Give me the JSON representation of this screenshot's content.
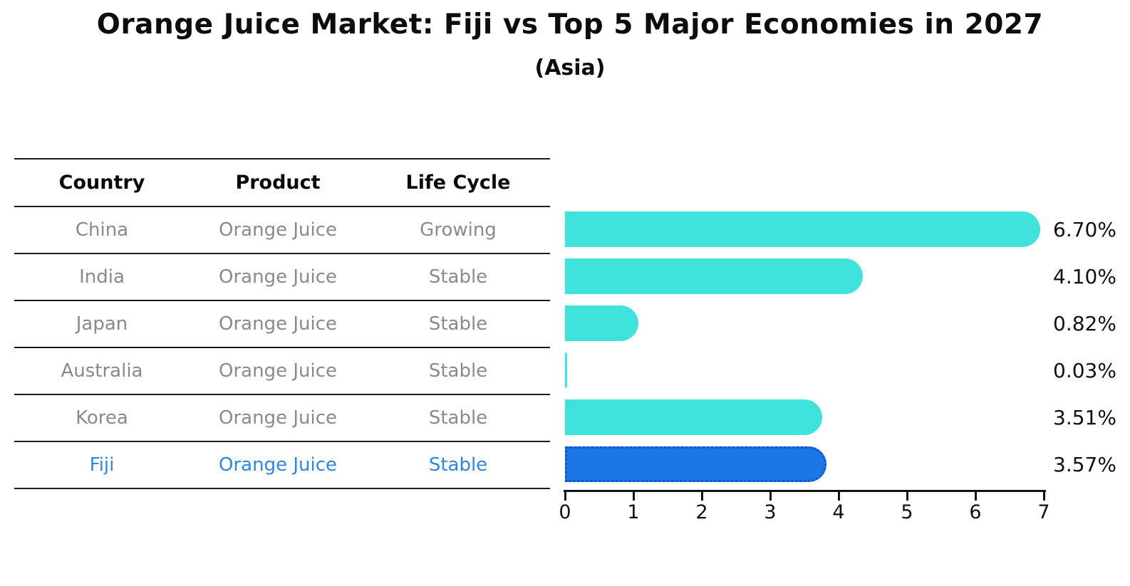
{
  "title": "Orange Juice Market: Fiji vs Top 5 Major Economies in 2027",
  "subtitle": "(Asia)",
  "table": {
    "headers": [
      "Country",
      "Product",
      "Life Cycle"
    ],
    "rows": [
      {
        "country": "China",
        "product": "Orange Juice",
        "life_cycle": "Growing"
      },
      {
        "country": "India",
        "product": "Orange Juice",
        "life_cycle": "Stable"
      },
      {
        "country": "Japan",
        "product": "Orange Juice",
        "life_cycle": "Stable"
      },
      {
        "country": "Australia",
        "product": "Orange Juice",
        "life_cycle": "Stable"
      },
      {
        "country": "Korea",
        "product": "Orange Juice",
        "life_cycle": "Stable"
      },
      {
        "country": "Fiji",
        "product": "Orange Juice",
        "life_cycle": "Stable"
      }
    ]
  },
  "chart_data": {
    "type": "bar",
    "orientation": "horizontal",
    "title": "Orange Juice Market: Fiji vs Top 5 Major Economies in 2027",
    "subtitle": "(Asia)",
    "categories": [
      "China",
      "India",
      "Japan",
      "Australia",
      "Korea",
      "Fiji"
    ],
    "values": [
      6.7,
      4.1,
      0.82,
      0.03,
      3.51,
      3.57
    ],
    "value_labels": [
      "6.70%",
      "4.10%",
      "0.82%",
      "0.03%",
      "3.51%",
      "3.57%"
    ],
    "xlim": [
      0,
      7
    ],
    "xticks": [
      "0",
      "1",
      "2",
      "3",
      "4",
      "5",
      "6",
      "7"
    ],
    "grid": false,
    "legend": false,
    "highlight_index": 5,
    "bar_color": "#40E3DC",
    "highlight_bar_color": "#1C76E8",
    "highlight_border_color": "#0C53C8",
    "highlight_text_color": "#2E86DE"
  }
}
